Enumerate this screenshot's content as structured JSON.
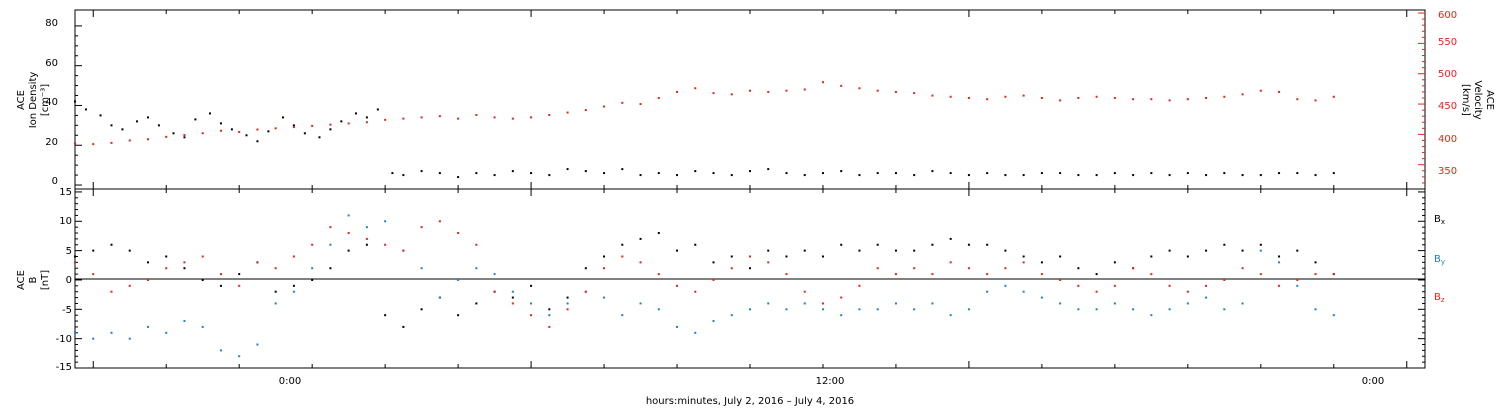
{
  "charts": [
    {
      "id": "panel-top",
      "type": "scatter",
      "ylabel_left": [
        "ACE",
        "Ion Density",
        "[cm⁻³]"
      ],
      "ylabel_right": [
        "ACE",
        "Velocity",
        "[km/s]"
      ],
      "yticks_left": [
        "0",
        "20",
        "40",
        "60",
        "80"
      ],
      "yticks_right": [
        "350",
        "400",
        "450",
        "500",
        "550",
        "600"
      ]
    },
    {
      "id": "panel-bottom",
      "type": "scatter",
      "ylabel_left": [
        "ACE",
        "B",
        "[nT]"
      ],
      "yticks_left": [
        "-15",
        "-10",
        "-5",
        "0",
        "5",
        "10",
        "15"
      ],
      "legend": [
        "Bx",
        "By",
        "Bz"
      ]
    }
  ],
  "xaxis": {
    "title": "hours:minutes, July  2, 2016 – July  4, 2016",
    "ticks": [
      "0:00",
      "12:00",
      "0:00"
    ]
  },
  "chart_data": [
    {
      "type": "scatter",
      "x_unit": "hours since 2016-07-03 00:00",
      "xlim": [
        -12.5,
        24.5
      ],
      "ylim_left": [
        -2,
        88
      ],
      "ylim_right": [
        310,
        605
      ],
      "series": [
        {
          "name": "Ion Density",
          "axis": "left",
          "color": "#000000",
          "x": [
            -12.5,
            -12.2,
            -11.8,
            -11.5,
            -11.2,
            -10.8,
            -10.5,
            -10.2,
            -9.8,
            -9.5,
            -9.2,
            -8.8,
            -8.5,
            -8.2,
            -7.8,
            -7.5,
            -7.2,
            -6.8,
            -6.5,
            -6.2,
            -5.8,
            -5.5,
            -5.2,
            -4.8,
            -4.5,
            -4.2,
            -3.8,
            -3.5,
            -3.0,
            -2.5,
            -2.0,
            -1.5,
            -1.0,
            -0.5,
            0.0,
            0.5,
            1.0,
            1.5,
            2.0,
            2.5,
            3.0,
            3.5,
            4.0,
            4.5,
            5.0,
            5.5,
            6.0,
            6.5,
            7.0,
            7.5,
            8.0,
            8.5,
            9.0,
            9.5,
            10.0,
            10.5,
            11.0,
            11.5,
            12.0,
            12.5,
            13.0,
            13.5,
            14.0,
            14.5,
            15.0,
            15.5,
            16.0,
            16.5,
            17.0,
            17.5,
            18.0,
            18.5,
            19.0,
            19.5,
            20.0,
            20.5,
            21.0,
            21.5,
            22.0
          ],
          "y": [
            42,
            38,
            35,
            30,
            28,
            32,
            34,
            30,
            26,
            24,
            33,
            36,
            31,
            28,
            25,
            22,
            27,
            34,
            30,
            26,
            24,
            28,
            32,
            36,
            34,
            38,
            6,
            5,
            7,
            6,
            4,
            6,
            5,
            7,
            6,
            5,
            8,
            7,
            6,
            8,
            5,
            6,
            5,
            7,
            6,
            5,
            7,
            8,
            6,
            5,
            6,
            7,
            5,
            6,
            6,
            5,
            7,
            6,
            5,
            6,
            5,
            5,
            6,
            6,
            5,
            5,
            6,
            5,
            6,
            5,
            6,
            5,
            6,
            5,
            5,
            6,
            6,
            5,
            6
          ]
        },
        {
          "name": "Velocity",
          "axis": "right",
          "color": "#e8231a",
          "x": [
            -12.5,
            -12.0,
            -11.5,
            -11.0,
            -10.5,
            -10.0,
            -9.5,
            -9.0,
            -8.5,
            -8.0,
            -7.5,
            -7.0,
            -6.5,
            -6.0,
            -5.5,
            -5.0,
            -4.5,
            -4.0,
            -3.5,
            -3.0,
            -2.5,
            -2.0,
            -1.5,
            -1.0,
            -0.5,
            0.0,
            0.5,
            1.0,
            1.5,
            2.0,
            2.5,
            3.0,
            3.5,
            4.0,
            4.5,
            5.0,
            5.5,
            6.0,
            6.5,
            7.0,
            7.5,
            8.0,
            8.5,
            9.0,
            9.5,
            10.0,
            10.5,
            11.0,
            11.5,
            12.0,
            12.5,
            13.0,
            13.5,
            14.0,
            14.5,
            15.0,
            15.5,
            16.0,
            16.5,
            17.0,
            17.5,
            18.0,
            18.5,
            19.0,
            19.5,
            20.0,
            20.5,
            21.0,
            21.5,
            22.0
          ],
          "y": [
            385,
            384,
            386,
            390,
            392,
            396,
            399,
            402,
            406,
            404,
            408,
            410,
            412,
            414,
            416,
            418,
            420,
            424,
            426,
            428,
            430,
            426,
            432,
            428,
            426,
            428,
            432,
            436,
            440,
            446,
            452,
            450,
            460,
            470,
            476,
            468,
            466,
            472,
            470,
            472,
            474,
            486,
            480,
            476,
            472,
            470,
            468,
            464,
            462,
            460,
            458,
            462,
            464,
            460,
            456,
            460,
            462,
            460,
            458,
            458,
            456,
            458,
            460,
            462,
            466,
            472,
            470,
            458,
            456,
            462
          ]
        }
      ]
    },
    {
      "type": "scatter",
      "x_unit": "hours since 2016-07-03 00:00",
      "xlim": [
        -12.5,
        24.5
      ],
      "ylim": [
        -15,
        15.5
      ],
      "series": [
        {
          "name": "Bx",
          "color": "#000000",
          "x": [
            -12.5,
            -12.0,
            -11.5,
            -11.0,
            -10.5,
            -10.0,
            -9.5,
            -9.0,
            -8.5,
            -8.0,
            -7.5,
            -7.0,
            -6.5,
            -6.0,
            -5.5,
            -5.0,
            -4.5,
            -4.0,
            -3.5,
            -3.0,
            -2.5,
            -2.0,
            -1.5,
            -1.0,
            -0.5,
            0.0,
            0.5,
            1.0,
            1.5,
            2.0,
            2.5,
            3.0,
            3.5,
            4.0,
            4.5,
            5.0,
            5.5,
            6.0,
            6.5,
            7.0,
            7.5,
            8.0,
            8.5,
            9.0,
            9.5,
            10.0,
            10.5,
            11.0,
            11.5,
            12.0,
            12.5,
            13.0,
            13.5,
            14.0,
            14.5,
            15.0,
            15.5,
            16.0,
            16.5,
            17.0,
            17.5,
            18.0,
            18.5,
            19.0,
            19.5,
            20.0,
            20.5,
            21.0,
            21.5,
            22.0
          ],
          "y": [
            4,
            5,
            6,
            5,
            3,
            4,
            2,
            0,
            -1,
            1,
            3,
            -2,
            -1,
            0,
            2,
            5,
            6,
            -6,
            -8,
            -5,
            -3,
            -6,
            -4,
            -2,
            -3,
            -1,
            -5,
            -3,
            2,
            4,
            6,
            7,
            8,
            5,
            6,
            3,
            4,
            2,
            5,
            4,
            5,
            4,
            6,
            5,
            6,
            5,
            5,
            6,
            7,
            6,
            6,
            5,
            4,
            3,
            4,
            2,
            1,
            3,
            2,
            4,
            5,
            4,
            5,
            6,
            5,
            6,
            4,
            5,
            3,
            1
          ]
        },
        {
          "name": "By",
          "color": "#1e7fd6",
          "x": [
            -12.5,
            -12.0,
            -11.5,
            -11.0,
            -10.5,
            -10.0,
            -9.5,
            -9.0,
            -8.5,
            -8.0,
            -7.5,
            -7.0,
            -6.5,
            -6.0,
            -5.5,
            -5.0,
            -4.5,
            -4.0,
            -3.5,
            -3.0,
            -2.5,
            -2.0,
            -1.5,
            -1.0,
            -0.5,
            0.0,
            0.5,
            1.0,
            1.5,
            2.0,
            2.5,
            3.0,
            3.5,
            4.0,
            4.5,
            5.0,
            5.5,
            6.0,
            6.5,
            7.0,
            7.5,
            8.0,
            8.5,
            9.0,
            9.5,
            10.0,
            10.5,
            11.0,
            11.5,
            12.0,
            12.5,
            13.0,
            13.5,
            14.0,
            14.5,
            15.0,
            15.5,
            16.0,
            16.5,
            17.0,
            17.5,
            18.0,
            18.5,
            19.0,
            19.5,
            20.0,
            20.5,
            21.0,
            21.5,
            22.0
          ],
          "y": [
            -9,
            -10,
            -9,
            -10,
            -8,
            -9,
            -7,
            -8,
            -12,
            -13,
            -11,
            -4,
            -2,
            2,
            6,
            11,
            9,
            10,
            5,
            2,
            -3,
            0,
            2,
            1,
            -2,
            -4,
            -6,
            -4,
            -2,
            -3,
            -6,
            -4,
            -5,
            -8,
            -9,
            -7,
            -6,
            -5,
            -4,
            -5,
            -4,
            -5,
            -6,
            -5,
            -5,
            -4,
            -5,
            -4,
            -6,
            -5,
            -2,
            -1,
            -2,
            -3,
            -4,
            -5,
            -5,
            -4,
            -5,
            -6,
            -5,
            -4,
            -3,
            -5,
            -4,
            5,
            3,
            -1,
            -5,
            -6
          ]
        },
        {
          "name": "Bz",
          "color": "#e8231a",
          "x": [
            -12.5,
            -12.0,
            -11.5,
            -11.0,
            -10.5,
            -10.0,
            -9.5,
            -9.0,
            -8.5,
            -8.0,
            -7.5,
            -7.0,
            -6.5,
            -6.0,
            -5.5,
            -5.0,
            -4.5,
            -4.0,
            -3.5,
            -3.0,
            -2.5,
            -2.0,
            -1.5,
            -1.0,
            -0.5,
            0.0,
            0.5,
            1.0,
            1.5,
            2.0,
            2.5,
            3.0,
            3.5,
            4.0,
            4.5,
            5.0,
            5.5,
            6.0,
            6.5,
            7.0,
            7.5,
            8.0,
            8.5,
            9.0,
            9.5,
            10.0,
            10.5,
            11.0,
            11.5,
            12.0,
            12.5,
            13.0,
            13.5,
            14.0,
            14.5,
            15.0,
            15.5,
            16.0,
            16.5,
            17.0,
            17.5,
            18.0,
            18.5,
            19.0,
            19.5,
            20.0,
            20.5,
            21.0,
            21.5,
            22.0
          ],
          "y": [
            3,
            1,
            -2,
            -1,
            0,
            2,
            3,
            4,
            1,
            -1,
            3,
            2,
            4,
            6,
            9,
            8,
            7,
            6,
            5,
            9,
            10,
            8,
            6,
            -2,
            -4,
            -6,
            -8,
            -5,
            -2,
            2,
            4,
            3,
            1,
            -1,
            -2,
            0,
            2,
            4,
            3,
            1,
            -2,
            -4,
            -3,
            -1,
            2,
            1,
            2,
            1,
            3,
            2,
            1,
            2,
            3,
            1,
            0,
            -1,
            -2,
            -1,
            2,
            1,
            -1,
            -2,
            -1,
            0,
            2,
            1,
            -1,
            0,
            1,
            1
          ]
        }
      ]
    }
  ]
}
